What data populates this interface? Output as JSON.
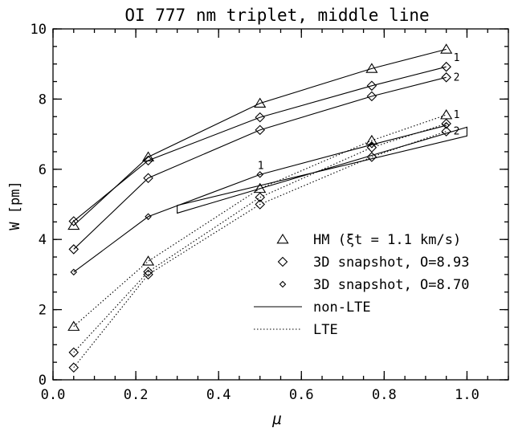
{
  "chart_data": {
    "type": "line",
    "title": "OI 777 nm triplet, middle line",
    "xlabel": "μ",
    "ylabel": "W [pm]",
    "xlim": [
      0.0,
      1.1
    ],
    "ylim": [
      0,
      10
    ],
    "xticks": [
      "0.0",
      "0.2",
      "0.4",
      "0.6",
      "0.8",
      "1.0"
    ],
    "yticks": [
      "0",
      "2",
      "4",
      "6",
      "8",
      "10"
    ],
    "legend_position": "bottom-right",
    "legend": [
      {
        "marker": "triangle",
        "label": "HM (ξt = 1.1 km/s)"
      },
      {
        "marker": "diamond",
        "label": "3D snapshot, O=8.93"
      },
      {
        "marker": "diamond-small",
        "label": "3D snapshot, O=8.70"
      },
      {
        "marker": "solid-line",
        "label": "non-LTE"
      },
      {
        "marker": "dotted-line",
        "label": "LTE"
      }
    ],
    "series": [
      {
        "name": "HM (ξt = 1.1 km/s)",
        "line": "non-LTE",
        "marker": "triangle",
        "x": [
          0.05,
          0.23,
          0.5,
          0.77,
          0.95
        ],
        "y": [
          4.4,
          6.35,
          7.88,
          8.87,
          9.42
        ]
      },
      {
        "name": "3D snapshot, O=8.93",
        "line": "non-LTE",
        "marker": "diamond",
        "label": "1",
        "x": [
          0.05,
          0.23,
          0.5,
          0.77,
          0.95
        ],
        "y": [
          4.52,
          6.25,
          7.48,
          8.38,
          8.92
        ]
      },
      {
        "name": "3D snapshot, O=8.93",
        "line": "non-LTE",
        "marker": "diamond",
        "label": "2",
        "x": [
          0.05,
          0.23,
          0.5,
          0.77,
          0.95
        ],
        "y": [
          3.72,
          5.75,
          7.12,
          8.08,
          8.62
        ]
      },
      {
        "name": "3D snapshot, O=8.70",
        "line": "non-LTE",
        "marker": "diamond-small",
        "x": [
          0.05,
          0.23,
          0.5,
          0.77,
          0.95
        ],
        "y": [
          3.07,
          4.65,
          5.85,
          6.7,
          7.25
        ]
      },
      {
        "name": "HM (ξt = 1.1 km/s)",
        "line": "LTE",
        "marker": "triangle",
        "x": [
          0.05,
          0.23,
          0.5,
          0.77,
          0.95
        ],
        "y": [
          1.52,
          3.38,
          5.45,
          6.82,
          7.55
        ]
      },
      {
        "name": "3D snapshot, O=8.93",
        "line": "LTE",
        "marker": "diamond",
        "label": "1",
        "x": [
          0.05,
          0.23,
          0.5,
          0.77,
          0.95
        ],
        "y": [
          0.78,
          3.08,
          5.2,
          6.62,
          7.3
        ]
      },
      {
        "name": "3D snapshot, O=8.93",
        "line": "LTE",
        "marker": "diamond",
        "label": "2",
        "x": [
          0.05,
          0.23,
          0.5,
          0.77,
          0.95
        ],
        "y": [
          0.35,
          3.0,
          5.0,
          6.35,
          7.08
        ]
      }
    ],
    "shape": {
      "points": [
        [
          0.3,
          4.75
        ],
        [
          1.0,
          7.2
        ],
        [
          1.0,
          6.95
        ],
        [
          0.3,
          4.97
        ]
      ]
    },
    "annotations": [
      {
        "text": "1",
        "x": 0.5,
        "y": 5.85
      },
      {
        "text": "1",
        "x": 0.95,
        "y": 8.92
      },
      {
        "text": "2",
        "x": 0.95,
        "y": 8.62
      },
      {
        "text": "1",
        "x": 0.95,
        "y": 7.3
      },
      {
        "text": "2",
        "x": 0.95,
        "y": 7.08
      }
    ]
  }
}
